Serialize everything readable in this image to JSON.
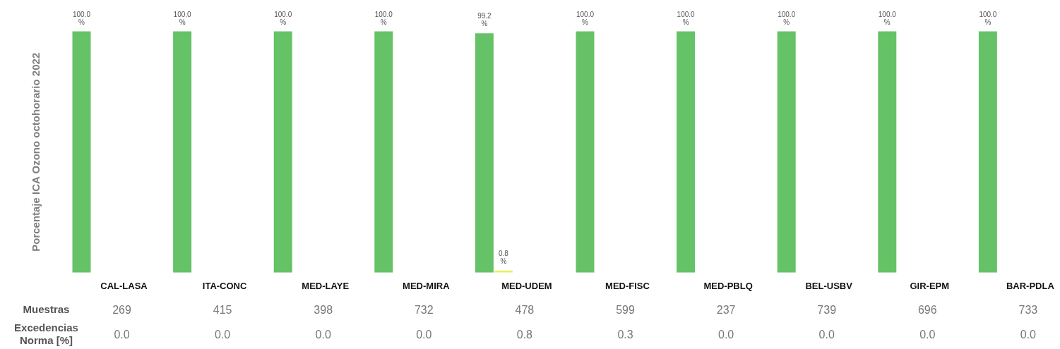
{
  "chart_data": {
    "type": "bar",
    "ylabel": "Porcentaje ICA Ozono octohorario 2022",
    "categories": [
      "CAL-LASA",
      "ITA-CONC",
      "MED-LAYE",
      "MED-MIRA",
      "MED-UDEM",
      "MED-FISC",
      "MED-PBLQ",
      "BEL-USBV",
      "GIR-EPM",
      "BAR-PDLA"
    ],
    "series": [
      {
        "color": "#66c266",
        "values": [
          100,
          100,
          100,
          100,
          99.2,
          100,
          100,
          100,
          100,
          100
        ],
        "value_labels": [
          "100.0 %",
          "100.0 %",
          "100.0 %",
          "100.0 %",
          "99.2 %",
          "100.0 %",
          "100.0 %",
          "100.0 %",
          "100.0 %",
          "100.0 %"
        ]
      },
      {
        "color": "#e8f060",
        "values": [
          null,
          null,
          null,
          null,
          0.8,
          null,
          null,
          null,
          null,
          null
        ],
        "value_labels": [
          null,
          null,
          null,
          null,
          "0.8 %",
          null,
          null,
          null,
          null,
          null
        ]
      }
    ],
    "annotations": [
      "Muestras",
      "269",
      "415",
      "398",
      "732",
      "478",
      "599",
      "237",
      "739",
      "696",
      "733",
      "Excedencias Norma [%]",
      "0.0",
      "0.0",
      "0.0",
      "0.0",
      "0.8",
      "0.3",
      "0.0",
      "0.0",
      "0.0",
      "0.0"
    ]
  }
}
